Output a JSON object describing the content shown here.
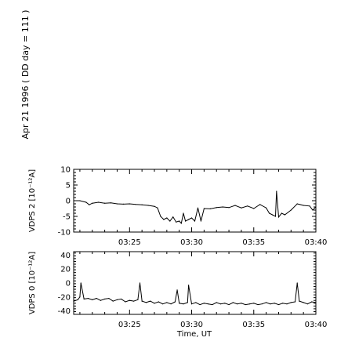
{
  "figure": {
    "title": "Apr 21 1996  ( DD day = 111 )",
    "xlabel": "Time, UT"
  },
  "chart_data": [
    {
      "type": "line",
      "name": "vdps2",
      "title": "",
      "xlabel": "",
      "ylabel": "VDPS 2  [10⁻¹²A]",
      "xlim": [
        "03:20:30",
        "03:40:00"
      ],
      "x_ticks": [
        "03:25",
        "03:30",
        "03:35",
        "03:40"
      ],
      "ylim": [
        -10,
        10
      ],
      "y_ticks": [
        10,
        5,
        0,
        -5,
        -10
      ],
      "grid": false,
      "series": [
        {
          "x": [
            "03:20:30",
            "03:21:00",
            "03:21:30",
            "03:21:45",
            "03:22:00",
            "03:22:30",
            "03:23:00",
            "03:23:30",
            "03:24:00",
            "03:24:30",
            "03:25:00",
            "03:25:30",
            "03:26:00",
            "03:26:30",
            "03:27:00",
            "03:27:15",
            "03:27:30",
            "03:27:45",
            "03:28:00",
            "03:28:15",
            "03:28:30",
            "03:28:45",
            "03:29:00",
            "03:29:10",
            "03:29:20",
            "03:29:30",
            "03:29:45",
            "03:30:00",
            "03:30:15",
            "03:30:30",
            "03:30:45",
            "03:31:00",
            "03:31:30",
            "03:32:00",
            "03:32:30",
            "03:33:00",
            "03:33:30",
            "03:34:00",
            "03:34:30",
            "03:35:00",
            "03:35:30",
            "03:36:00",
            "03:36:15",
            "03:36:30",
            "03:36:45",
            "03:36:50",
            "03:37:00",
            "03:37:15",
            "03:37:30",
            "03:38:00",
            "03:38:30",
            "03:39:00",
            "03:39:30",
            "03:39:45",
            "03:40:00"
          ],
          "values": [
            0,
            0,
            -0.5,
            -1.3,
            -0.8,
            -0.5,
            -0.8,
            -0.7,
            -1.0,
            -1.1,
            -1.0,
            -1.2,
            -1.3,
            -1.5,
            -1.8,
            -2.3,
            -5,
            -6,
            -5.5,
            -6.5,
            -5.2,
            -6.8,
            -6.5,
            -7.2,
            -4.0,
            -6.5,
            -6.0,
            -5.5,
            -6.5,
            -2.3,
            -6.5,
            -2.5,
            -2.6,
            -2.2,
            -2.0,
            -2.2,
            -1.5,
            -2.3,
            -1.7,
            -2.5,
            -1.2,
            -2.3,
            -4.0,
            -4.5,
            -5.0,
            3.0,
            -5.2,
            -4.0,
            -4.5,
            -3.0,
            -1.0,
            -1.5,
            -1.7,
            -3.0,
            -2.0
          ]
        }
      ]
    },
    {
      "type": "line",
      "name": "vdps0",
      "title": "",
      "xlabel": "Time, UT",
      "ylabel": "VDPS 0  [10⁻¹²A]",
      "xlim": [
        "03:20:30",
        "03:40:00"
      ],
      "x_ticks": [
        "03:25",
        "03:30",
        "03:35",
        "03:40"
      ],
      "ylim": [
        -45,
        45
      ],
      "y_ticks": [
        40,
        20,
        0,
        -20,
        -40
      ],
      "grid": false,
      "series": [
        {
          "x": [
            "03:20:30",
            "03:20:50",
            "03:21:00",
            "03:21:05",
            "03:21:20",
            "03:21:40",
            "03:22:00",
            "03:22:20",
            "03:22:40",
            "03:23:00",
            "03:23:20",
            "03:23:40",
            "03:24:00",
            "03:24:20",
            "03:24:40",
            "03:25:00",
            "03:25:20",
            "03:25:40",
            "03:25:50",
            "03:26:00",
            "03:26:20",
            "03:26:40",
            "03:27:00",
            "03:27:20",
            "03:27:40",
            "03:28:00",
            "03:28:20",
            "03:28:40",
            "03:28:50",
            "03:29:00",
            "03:29:20",
            "03:29:40",
            "03:29:45",
            "03:30:00",
            "03:30:20",
            "03:30:40",
            "03:31:00",
            "03:31:20",
            "03:31:40",
            "03:32:00",
            "03:32:20",
            "03:32:40",
            "03:33:00",
            "03:33:20",
            "03:33:40",
            "03:34:00",
            "03:34:20",
            "03:34:40",
            "03:35:00",
            "03:35:20",
            "03:35:40",
            "03:36:00",
            "03:36:20",
            "03:36:40",
            "03:37:00",
            "03:37:20",
            "03:37:40",
            "03:38:00",
            "03:38:20",
            "03:38:30",
            "03:38:40",
            "03:39:00",
            "03:39:20",
            "03:39:40",
            "03:40:00"
          ],
          "values": [
            -26,
            -24,
            -20,
            0,
            -23,
            -22,
            -24,
            -22,
            -25,
            -23,
            -22,
            -26,
            -24,
            -23,
            -27,
            -25,
            -26,
            -24,
            0,
            -26,
            -28,
            -26,
            -29,
            -27,
            -30,
            -28,
            -30,
            -27,
            -10,
            -29,
            -30,
            -28,
            -3,
            -30,
            -28,
            -31,
            -29,
            -30,
            -31,
            -28,
            -30,
            -29,
            -31,
            -28,
            -30,
            -29,
            -31,
            -30,
            -29,
            -31,
            -30,
            -28,
            -30,
            -29,
            -31,
            -29,
            -30,
            -28,
            -27,
            0,
            -26,
            -28,
            -30,
            -27,
            -28
          ]
        }
      ]
    }
  ]
}
